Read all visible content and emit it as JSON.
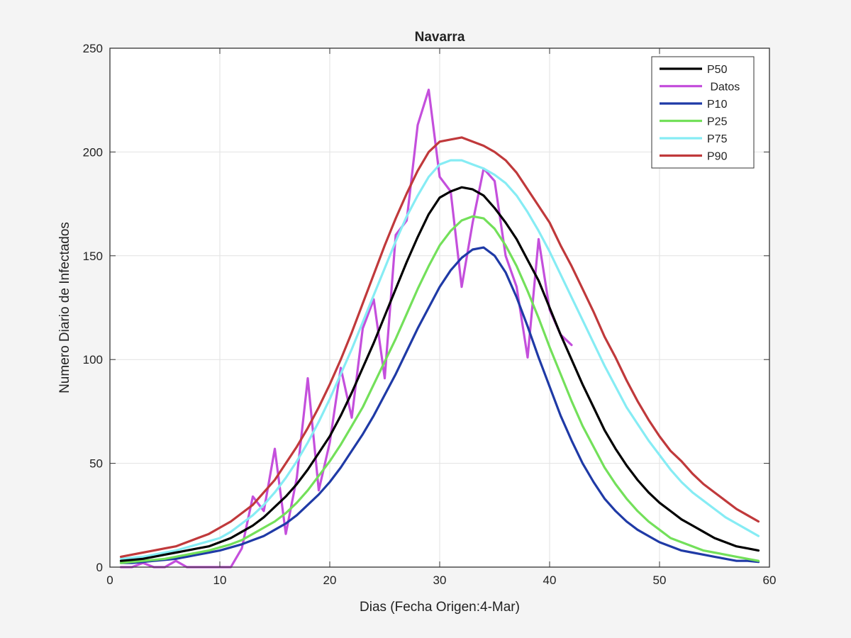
{
  "chart_data": {
    "type": "line",
    "title": "Navarra",
    "xlabel": "Dias (Fecha Origen:4-Mar)",
    "ylabel": "Numero Diario de Infectados",
    "xlim": [
      0,
      60
    ],
    "ylim": [
      0,
      250
    ],
    "xticks": [
      0,
      10,
      20,
      30,
      40,
      50,
      60
    ],
    "yticks": [
      0,
      50,
      100,
      150,
      200,
      250
    ],
    "grid": true,
    "legend_position": "top-right",
    "series": [
      {
        "name": "P50",
        "color": "#000000",
        "x": [
          1,
          2,
          3,
          4,
          5,
          6,
          7,
          8,
          9,
          10,
          11,
          12,
          13,
          14,
          15,
          16,
          17,
          18,
          19,
          20,
          21,
          22,
          23,
          24,
          25,
          26,
          27,
          28,
          29,
          30,
          31,
          32,
          33,
          34,
          35,
          36,
          37,
          38,
          39,
          40,
          41,
          42,
          43,
          44,
          45,
          46,
          47,
          48,
          49,
          50,
          51,
          52,
          53,
          54,
          55,
          56,
          57,
          58,
          59
        ],
        "y": [
          3,
          3.5,
          4,
          5,
          6,
          7,
          8,
          9,
          10,
          12,
          14,
          17,
          20,
          24,
          29,
          34,
          40,
          47,
          55,
          63,
          73,
          84,
          96,
          108,
          121,
          134,
          147,
          159,
          170,
          178,
          181,
          183,
          182,
          179,
          173,
          166,
          158,
          148,
          138,
          125,
          112,
          100,
          88,
          77,
          66,
          57,
          49,
          42,
          36,
          31,
          27,
          23,
          20,
          17,
          14,
          12,
          10,
          9,
          8
        ]
      },
      {
        "name": " Datos",
        "color": "#c44fdc",
        "x": [
          1,
          2,
          3,
          4,
          5,
          6,
          7,
          8,
          9,
          10,
          11,
          12,
          13,
          14,
          15,
          16,
          17,
          18,
          19,
          20,
          21,
          22,
          23,
          24,
          25,
          26,
          27,
          28,
          29,
          30,
          31,
          32,
          33,
          34,
          35,
          36,
          37,
          38,
          39,
          40,
          41,
          42
        ],
        "y": [
          0,
          0,
          2,
          0,
          0,
          3,
          0,
          0,
          0,
          0,
          0,
          9,
          34,
          27,
          57,
          16,
          43,
          91,
          37,
          60,
          96,
          72,
          115,
          129,
          91,
          160,
          167,
          213,
          230,
          188,
          181,
          135,
          166,
          192,
          186,
          150,
          135,
          101,
          158,
          124,
          112,
          107
        ]
      },
      {
        "name": "P10",
        "color": "#1f3aa6",
        "x": [
          1,
          2,
          3,
          4,
          5,
          6,
          7,
          8,
          9,
          10,
          11,
          12,
          13,
          14,
          15,
          16,
          17,
          18,
          19,
          20,
          21,
          22,
          23,
          24,
          25,
          26,
          27,
          28,
          29,
          30,
          31,
          32,
          33,
          34,
          35,
          36,
          37,
          38,
          39,
          40,
          41,
          42,
          43,
          44,
          45,
          46,
          47,
          48,
          49,
          50,
          51,
          52,
          53,
          54,
          55,
          56,
          57,
          58,
          59
        ],
        "y": [
          2,
          2,
          2.5,
          3,
          3.5,
          4,
          5,
          6,
          7,
          8,
          9.5,
          11,
          13,
          15,
          18,
          21,
          25,
          30,
          35,
          41,
          48,
          56,
          64,
          73,
          83,
          93,
          104,
          115,
          125,
          135,
          143,
          149,
          153,
          154,
          150,
          142,
          130,
          116,
          101,
          87,
          73,
          61,
          50,
          41,
          33,
          27,
          22,
          18,
          15,
          12,
          10,
          8,
          7,
          6,
          5,
          4,
          3,
          3,
          2.5
        ]
      },
      {
        "name": "P25",
        "color": "#73e05a",
        "x": [
          1,
          2,
          3,
          4,
          5,
          6,
          7,
          8,
          9,
          10,
          11,
          12,
          13,
          14,
          15,
          16,
          17,
          18,
          19,
          20,
          21,
          22,
          23,
          24,
          25,
          26,
          27,
          28,
          29,
          30,
          31,
          32,
          33,
          34,
          35,
          36,
          37,
          38,
          39,
          40,
          41,
          42,
          43,
          44,
          45,
          46,
          47,
          48,
          49,
          50,
          51,
          52,
          53,
          54,
          55,
          56,
          57,
          58,
          59
        ],
        "y": [
          2,
          2.5,
          3,
          3.5,
          4,
          5,
          6,
          7,
          8,
          9.5,
          11,
          13,
          16,
          19,
          22,
          26,
          31,
          37,
          44,
          51,
          59,
          68,
          77,
          88,
          99,
          110,
          122,
          134,
          145,
          155,
          162,
          167,
          169,
          168,
          163,
          155,
          145,
          133,
          120,
          106,
          93,
          80,
          68,
          58,
          48,
          40,
          33,
          27,
          22,
          18,
          14,
          12,
          10,
          8,
          7,
          6,
          5,
          4,
          3
        ]
      },
      {
        "name": "P75",
        "color": "#86ecf4",
        "x": [
          1,
          2,
          3,
          4,
          5,
          6,
          7,
          8,
          9,
          10,
          11,
          12,
          13,
          14,
          15,
          16,
          17,
          18,
          19,
          20,
          21,
          22,
          23,
          24,
          25,
          26,
          27,
          28,
          29,
          30,
          31,
          32,
          33,
          34,
          35,
          36,
          37,
          38,
          39,
          40,
          41,
          42,
          43,
          44,
          45,
          46,
          47,
          48,
          49,
          50,
          51,
          52,
          53,
          54,
          55,
          56,
          57,
          58,
          59
        ],
        "y": [
          4,
          4.5,
          5,
          6,
          7,
          8,
          9.5,
          11,
          12.5,
          14,
          17,
          21,
          25,
          30,
          36,
          43,
          51,
          60,
          70,
          81,
          93,
          105,
          118,
          131,
          144,
          157,
          169,
          179,
          188,
          194,
          196,
          196,
          194,
          192,
          189,
          185,
          179,
          171,
          162,
          152,
          141,
          130,
          119,
          108,
          97,
          87,
          77,
          69,
          61,
          54,
          47,
          41,
          36,
          32,
          28,
          24,
          21,
          18,
          15
        ]
      },
      {
        "name": "P90",
        "color": "#c0393b",
        "x": [
          1,
          2,
          3,
          4,
          5,
          6,
          7,
          8,
          9,
          10,
          11,
          12,
          13,
          14,
          15,
          16,
          17,
          18,
          19,
          20,
          21,
          22,
          23,
          24,
          25,
          26,
          27,
          28,
          29,
          30,
          31,
          32,
          33,
          34,
          35,
          36,
          37,
          38,
          39,
          40,
          41,
          42,
          43,
          44,
          45,
          46,
          47,
          48,
          49,
          50,
          51,
          52,
          53,
          54,
          55,
          56,
          57,
          58,
          59
        ],
        "y": [
          5,
          6,
          7,
          8,
          9,
          10,
          12,
          14,
          16,
          19,
          22,
          26,
          30,
          36,
          42,
          50,
          58,
          67,
          77,
          88,
          100,
          113,
          127,
          141,
          155,
          168,
          180,
          191,
          200,
          205,
          206,
          207,
          205,
          203,
          200,
          196,
          190,
          182,
          174,
          166,
          155,
          145,
          134,
          123,
          111,
          101,
          90,
          80,
          71,
          63,
          56,
          51,
          45,
          40,
          36,
          32,
          28,
          25,
          22
        ]
      }
    ]
  }
}
